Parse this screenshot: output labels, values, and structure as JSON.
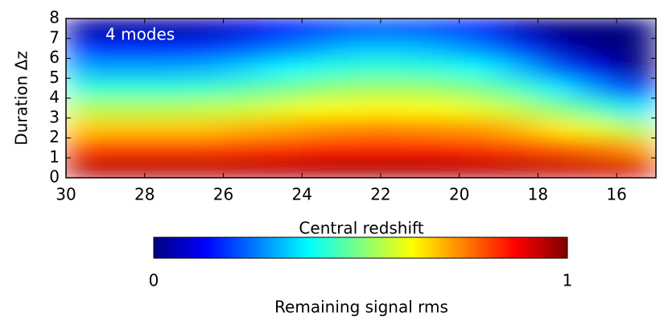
{
  "chart_data": {
    "type": "heatmap",
    "colormap": "jet",
    "xlabel": "Central redshift",
    "ylabel": "Duration Δz",
    "annotation": "4 modes",
    "xlim": [
      30,
      15
    ],
    "ylim": [
      0,
      8
    ],
    "xticks": [
      30,
      28,
      26,
      24,
      22,
      20,
      18,
      16
    ],
    "yticks": [
      0,
      1,
      2,
      3,
      4,
      5,
      6,
      7,
      8
    ],
    "z": [
      [
        0.94,
        0.94,
        0.94,
        0.94,
        0.94,
        0.94,
        0.95,
        0.95,
        0.95,
        0.95,
        0.94,
        0.94,
        0.93,
        0.92,
        0.91
      ],
      [
        0.81,
        0.81,
        0.81,
        0.81,
        0.82,
        0.83,
        0.84,
        0.84,
        0.84,
        0.84,
        0.83,
        0.81,
        0.79,
        0.76,
        0.72
      ],
      [
        0.68,
        0.68,
        0.68,
        0.68,
        0.7,
        0.71,
        0.73,
        0.74,
        0.74,
        0.73,
        0.72,
        0.69,
        0.64,
        0.6,
        0.54
      ],
      [
        0.55,
        0.55,
        0.55,
        0.56,
        0.57,
        0.6,
        0.62,
        0.63,
        0.63,
        0.62,
        0.6,
        0.56,
        0.5,
        0.44,
        0.35
      ],
      [
        0.42,
        0.42,
        0.42,
        0.43,
        0.45,
        0.48,
        0.51,
        0.53,
        0.53,
        0.52,
        0.49,
        0.44,
        0.36,
        0.27,
        0.17
      ],
      [
        0.29,
        0.29,
        0.29,
        0.3,
        0.33,
        0.37,
        0.4,
        0.42,
        0.42,
        0.41,
        0.38,
        0.31,
        0.21,
        0.11,
        0
      ],
      [
        0.17,
        0.17,
        0.17,
        0.18,
        0.21,
        0.25,
        0.29,
        0.32,
        0.32,
        0.3,
        0.26,
        0.19,
        0.07,
        0,
        0
      ],
      [
        0.04,
        0.04,
        0.04,
        0.05,
        0.09,
        0.14,
        0.18,
        0.21,
        0.21,
        0.19,
        0.15,
        0.06,
        0,
        0,
        0
      ]
    ],
    "colorbar": {
      "label": "Remaining signal rms",
      "lim": [
        0,
        1
      ],
      "ticks": [
        0,
        1
      ]
    }
  }
}
